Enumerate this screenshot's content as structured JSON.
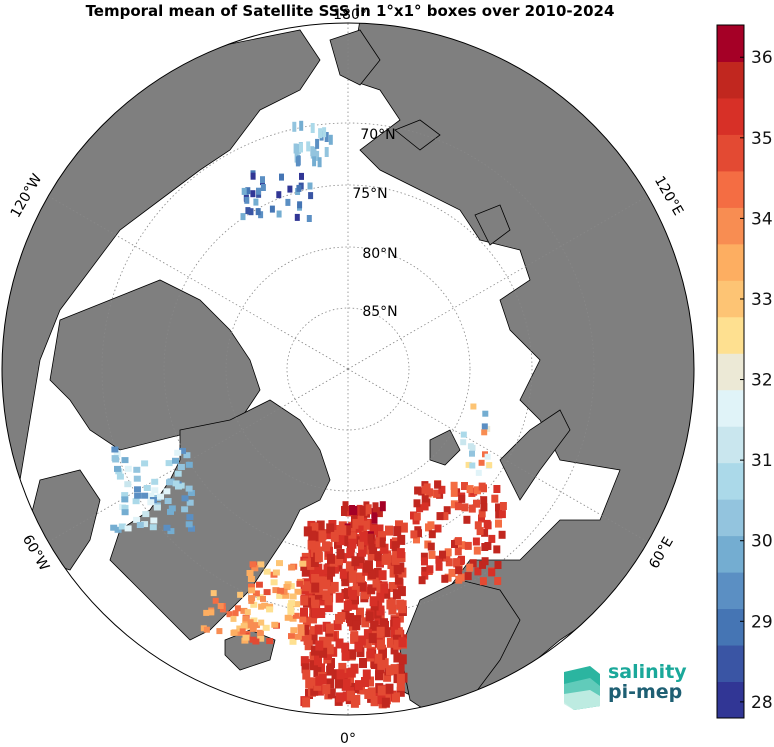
{
  "title": "Temporal mean of Satellite SSS in 1°x1° boxes over 2010-2024",
  "map": {
    "projection": "north-polar-stereographic",
    "longitude_labels": [
      {
        "id": "lon-180",
        "text": "180°"
      },
      {
        "id": "lon-120w",
        "text": "120°W"
      },
      {
        "id": "lon-120e",
        "text": "120°E"
      },
      {
        "id": "lon-60w",
        "text": "60°W"
      },
      {
        "id": "lon-60e",
        "text": "60°E"
      },
      {
        "id": "lon-0",
        "text": "0°"
      }
    ],
    "latitude_labels": [
      {
        "id": "lat-70",
        "text": "70°N"
      },
      {
        "id": "lat-75",
        "text": "75°N"
      },
      {
        "id": "lat-80",
        "text": "80°N"
      },
      {
        "id": "lat-85",
        "text": "85°N"
      }
    ],
    "land_color": "#7f7f7f",
    "ocean_color": "#ffffff"
  },
  "colorbar": {
    "min": 27.8,
    "max": 36.4,
    "ticks": [
      "28",
      "29",
      "30",
      "31",
      "32",
      "33",
      "34",
      "35",
      "36"
    ],
    "colors": [
      "#313695",
      "#3a55a4",
      "#4575b4",
      "#5b8fc3",
      "#74add1",
      "#93c4de",
      "#abd9e9",
      "#c9e6ee",
      "#e0f3f8",
      "#ece9d6",
      "#fee090",
      "#fdc474",
      "#fdae61",
      "#f88d52",
      "#f46d43",
      "#e34a33",
      "#d73027",
      "#c1271f",
      "#a50026"
    ]
  },
  "logo": {
    "line1": "salinity",
    "line2": "pi-mep"
  }
}
